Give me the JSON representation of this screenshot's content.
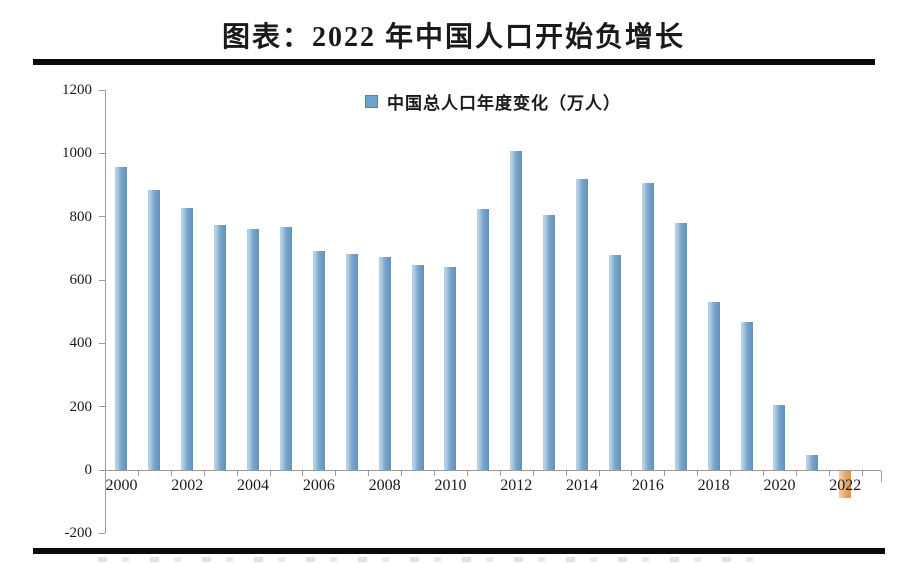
{
  "header": {
    "title": "图表：2022 年中国人口开始负增长"
  },
  "legend": {
    "label": "中国总人口年度变化（万人）"
  },
  "axes": {
    "y_tick_labels": [
      "1200",
      "1000",
      "800",
      "600",
      "400",
      "200",
      "0",
      "-200"
    ],
    "x_tick_labels": [
      "2000",
      "2002",
      "2004",
      "2006",
      "2008",
      "2010",
      "2012",
      "2014",
      "2016",
      "2018",
      "2020",
      "2022"
    ]
  },
  "colors": {
    "text": "#1a1a1a",
    "rule": "#0a0a0a",
    "axis_line": "#9b9b9b",
    "bar_blue_light": "#b3d0e4",
    "bar_blue_main": "#7aa6cb",
    "bar_blue_dark": "#6390ba",
    "bar_orange_light": "#f4cba1",
    "bar_orange_main": "#e8a86d",
    "bar_orange_dark": "#dd9552",
    "legend_marker": "#6fa2c9",
    "legend_marker_border": "#4f85ae"
  },
  "chart_data": {
    "type": "bar",
    "title": "图表：2022 年中国人口开始负增长",
    "categories": [
      2000,
      2001,
      2002,
      2003,
      2004,
      2005,
      2006,
      2007,
      2008,
      2009,
      2010,
      2011,
      2012,
      2013,
      2014,
      2015,
      2016,
      2017,
      2018,
      2019,
      2020,
      2021,
      2022
    ],
    "series": [
      {
        "name": "中国总人口年度变化（万人）",
        "values": [
          957,
          884,
          826,
          774,
          761,
          768,
          692,
          681,
          673,
          647,
          641,
          825,
          1006,
          804,
          920,
          680,
          906,
          779,
          530,
          467,
          204,
          48,
          -85
        ]
      }
    ],
    "xlabel": "",
    "ylabel": "",
    "ylim": [
      -200,
      1200
    ],
    "ytick_step": 200,
    "grid": false,
    "legend_position": "top-center",
    "negative_bar_category": 2022
  }
}
